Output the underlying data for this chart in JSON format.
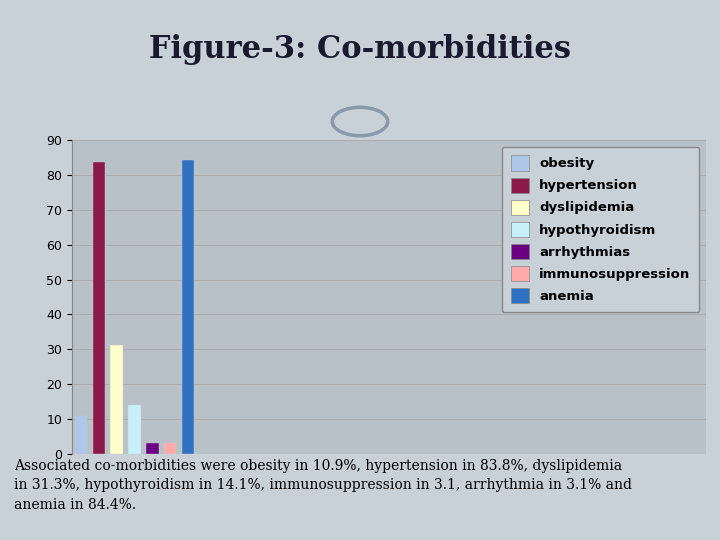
{
  "title": "Figure-3: Co-morbidities",
  "categories": [
    "obesity",
    "hypertension",
    "dyslipidemia",
    "hypothyroidism",
    "arrhythmias",
    "immunosuppression",
    "anemia"
  ],
  "values": [
    10.9,
    83.8,
    31.3,
    14.1,
    3.1,
    3.1,
    84.4
  ],
  "colors": [
    "#aec6e8",
    "#8b1a4a",
    "#ffffcc",
    "#c8f0f8",
    "#6b0080",
    "#ffaaaa",
    "#3070c0"
  ],
  "ylim": [
    0,
    90
  ],
  "yticks": [
    0,
    10,
    20,
    30,
    40,
    50,
    60,
    70,
    80,
    90
  ],
  "background_color": "#c8d0d8",
  "plot_area_color": "#b8c0c8",
  "title_bg": "#ffffff",
  "title_fontsize": 22,
  "legend_labels": [
    "obesity",
    "hypertension",
    "dyslipidemia",
    "hypothyroidism",
    "arrhythmias",
    "immunosuppression",
    "anemia"
  ],
  "footer_text": "Associated co-morbidities were obesity in 10.9%, hypertension in 83.8%, dyslipidemia\nin 31.3%, hypothyroidism in 14.1%, immunosuppression in 3.1, arrhythmia in 3.1% and\nanemia in 84.4%.",
  "footer_fontsize": 10
}
